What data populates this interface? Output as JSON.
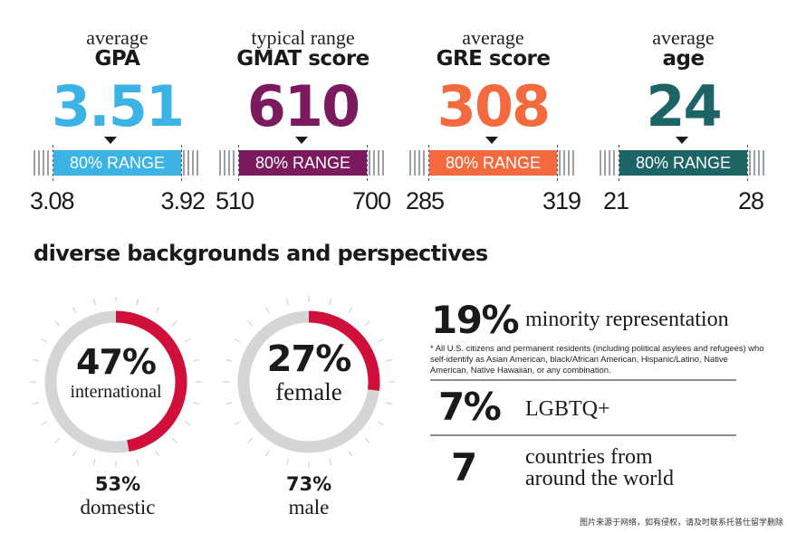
{
  "stats": [
    {
      "line1": "average",
      "line2": "GPA",
      "value": "3.51",
      "range_label": "80% RANGE",
      "low": "3.08",
      "high": "3.92",
      "color": "#3bb3e4"
    },
    {
      "line1": "typical range",
      "line2": "GMAT score",
      "value": "610",
      "range_label": "80% RANGE",
      "low": "510",
      "high": "700",
      "color": "#7b1a5f"
    },
    {
      "line1": "average",
      "line2": "GRE score",
      "value": "308",
      "range_label": "80% RANGE",
      "low": "285",
      "high": "319",
      "color": "#f26a3d"
    },
    {
      "line1": "average",
      "line2": "age",
      "value": "24",
      "range_label": "80% RANGE",
      "low": "21",
      "high": "28",
      "color": "#1c6465"
    }
  ],
  "section_title": "diverse backgrounds and perspectives",
  "donuts": [
    {
      "pct": "47%",
      "caption": "international",
      "fraction": 0.47,
      "other_pct": "53%",
      "other_caption": "domestic",
      "accent": "#d0103a",
      "track": "#d5d5d8"
    },
    {
      "pct": "27%",
      "caption": "female",
      "fraction": 0.27,
      "other_pct": "73%",
      "other_caption": "male",
      "accent": "#d0103a",
      "track": "#d5d5d8"
    }
  ],
  "facts": {
    "minority": {
      "value": "19%",
      "label": "minority representation"
    },
    "note": "* All U.S. citizens and permanent residents (including political asylees and refugees) who self-identify as Asian American, black/African American, Hispanic/Latino, Native American, Native Hawaiian, or any combination.",
    "lgbtq": {
      "value": "7%",
      "label": "LGBTQ+"
    },
    "countries": {
      "value": "7",
      "label_line1": "countries from",
      "label_line2": "around the world"
    }
  },
  "footer": "图片来源于网络，如有侵权，请及时联系托普仕留学删除"
}
